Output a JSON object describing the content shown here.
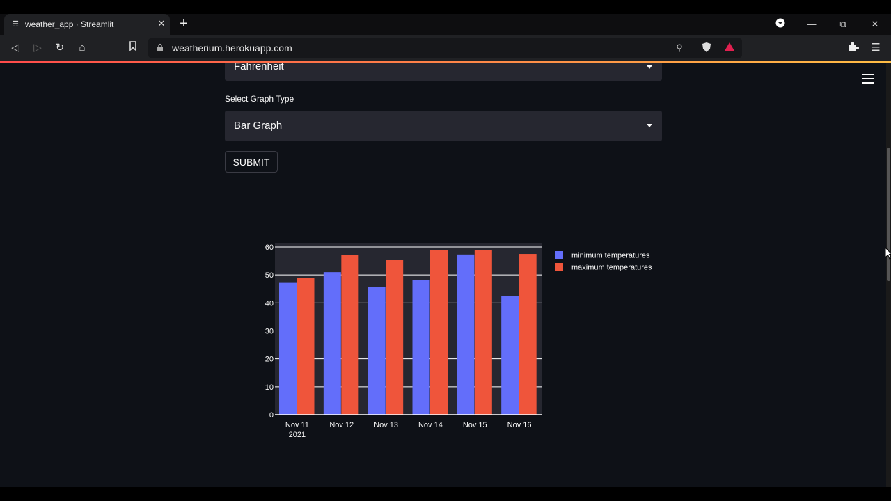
{
  "browser": {
    "tab_title": "weather_app · Streamlit",
    "url": "weatherium.herokuapp.com",
    "new_tab_symbol": "+",
    "icons": [
      "streamlit-favicon",
      "close-icon",
      "plus-icon",
      "back-icon",
      "forward-icon",
      "reload-icon",
      "home-icon",
      "bookmark-icon",
      "lock-icon",
      "zoom-icon",
      "brave-shield-icon",
      "brave-rewards-icon",
      "extensions-icon",
      "browser-menu-icon",
      "minimize-icon",
      "restore-icon",
      "window-close-icon",
      "profile-dropdown-icon"
    ]
  },
  "app": {
    "unit_select": {
      "value": "Fahrenheit"
    },
    "graph_label": "Select Graph Type",
    "graph_select": {
      "value": "Bar Graph"
    },
    "submit_label": "SUBMIT"
  },
  "colors": {
    "min": "#636efa",
    "max": "#ef553b",
    "background": "#0e1117",
    "plot_bg": "#262730"
  },
  "chart_data": {
    "type": "bar",
    "categories": [
      "Nov 11",
      "Nov 12",
      "Nov 13",
      "Nov 14",
      "Nov 15",
      "Nov 16"
    ],
    "year_label": "2021",
    "series": [
      {
        "name": "minimum temperatures",
        "color": "#636efa",
        "values": [
          47.4,
          51.0,
          45.6,
          48.3,
          57.3,
          42.5
        ]
      },
      {
        "name": "maximum temperatures",
        "color": "#ef553b",
        "values": [
          48.9,
          57.2,
          55.5,
          58.8,
          59.0,
          57.5
        ]
      }
    ],
    "ylim": [
      0,
      60
    ],
    "yticks": [
      0,
      10,
      20,
      30,
      40,
      50,
      60
    ],
    "grid": true,
    "legend": "top-right"
  }
}
